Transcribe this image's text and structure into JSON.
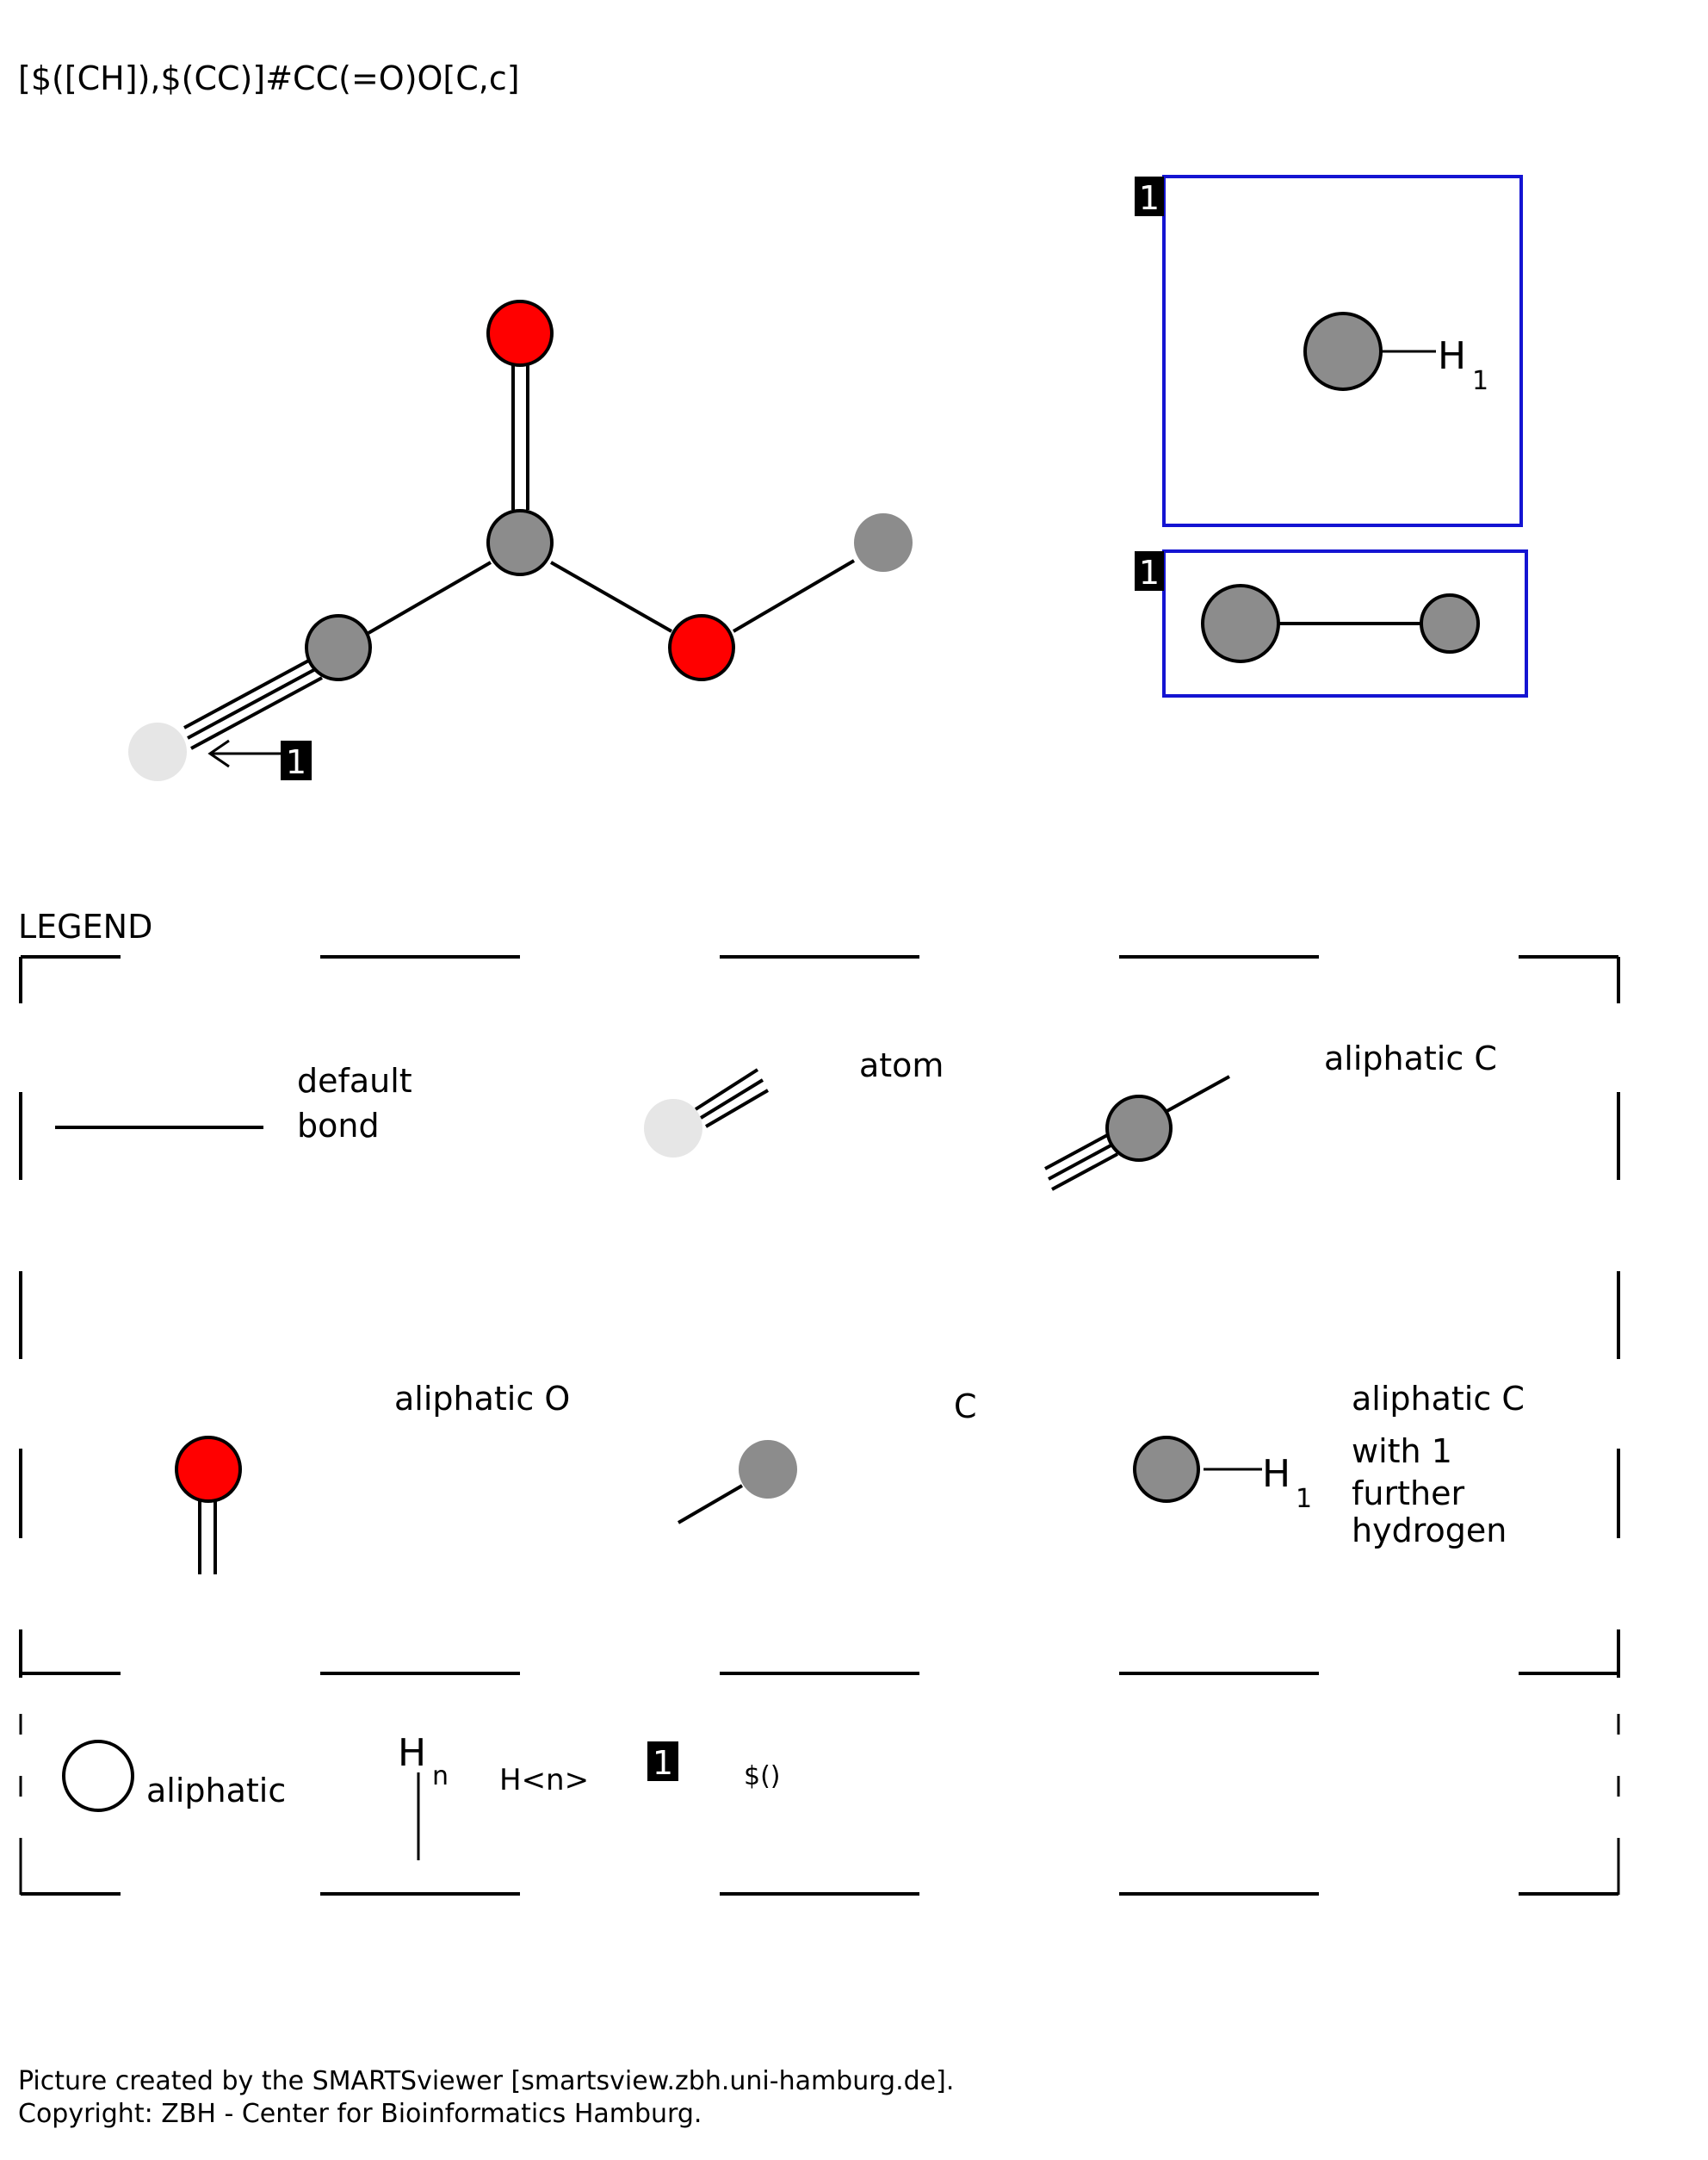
{
  "smarts": "[$([CH]),$(CC)]#CC(=O)O[C,c]",
  "colors": {
    "carbon": "#8c8c8c",
    "oxygen": "#ff0000",
    "any_atom": "#e6e6e6",
    "recursive_box": "#1414d2",
    "tag_bg": "#000000",
    "tag_fg": "#ffffff"
  },
  "molecule": {
    "atoms": [
      {
        "element": "any",
        "label": "atom"
      },
      {
        "element": "C",
        "label": "aliphatic C"
      },
      {
        "element": "C",
        "label": "aliphatic C"
      },
      {
        "element": "O",
        "label": "aliphatic O"
      },
      {
        "element": "O",
        "label": "aliphatic O"
      },
      {
        "element": "C",
        "label": "C"
      }
    ],
    "bonds": [
      {
        "from": 0,
        "to": 1,
        "order": 3
      },
      {
        "from": 1,
        "to": 2,
        "order": 1
      },
      {
        "from": 2,
        "to": 3,
        "order": 2
      },
      {
        "from": 2,
        "to": 4,
        "order": 1
      },
      {
        "from": 4,
        "to": 5,
        "order": 1
      }
    ],
    "reference_tag": "1"
  },
  "recursive_blocks": [
    {
      "tag": "1",
      "smarts": "[CH]",
      "hydrogen_label": "H",
      "hydrogen_count": "1"
    },
    {
      "tag": "1",
      "smarts": "CC"
    }
  ],
  "legend": {
    "title": "LEGEND",
    "items": {
      "default_bond": [
        "default",
        "bond"
      ],
      "atom": "atom",
      "aliphatic_c_triple": "aliphatic C",
      "aliphatic_o": "aliphatic O",
      "c": "C",
      "aliphatic_ch": [
        "aliphatic C",
        "with 1",
        "further",
        "hydrogen"
      ],
      "aliphatic": "aliphatic",
      "h_symbol": "H",
      "h_sub": "n",
      "h_n": "H<n>",
      "tag": "1",
      "recursive": "$()",
      "h_legend_label": "H",
      "h_legend_count": "1"
    }
  },
  "footer": {
    "line1": "Picture created by the SMARTSviewer [smartsview.zbh.uni-hamburg.de].",
    "line2": "Copyright: ZBH - Center for Bioinformatics Hamburg."
  }
}
